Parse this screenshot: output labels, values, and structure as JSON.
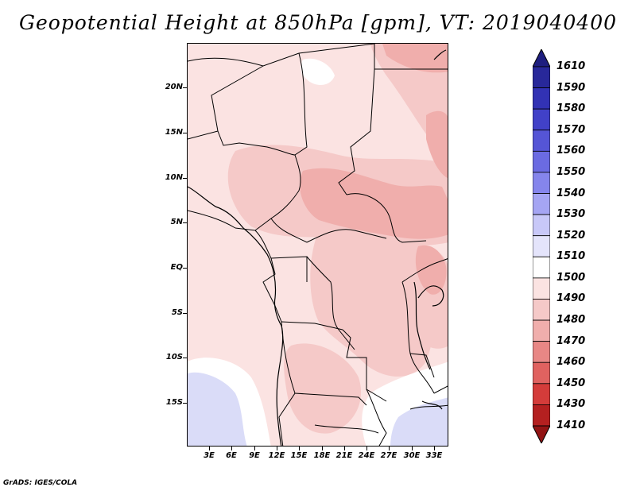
{
  "title": "Geopotential Height at 850hPa [gpm], VT: 2019040400",
  "footer": "GrADS: IGES/COLA",
  "map": {
    "lat_range": [
      -21.5,
      24.5
    ],
    "lon_range": [
      0,
      35
    ],
    "lat_labels": [
      "20N",
      "15N",
      "10N",
      "5N",
      "EQ",
      "5S",
      "10S",
      "15S"
    ],
    "lon_labels": [
      "3E",
      "6E",
      "9E",
      "12E",
      "15E",
      "18E",
      "21E",
      "24E",
      "27E",
      "30E",
      "33E"
    ],
    "fill_colors": {
      "1500": "#fbe3e2",
      "1490": "#f5c9c8",
      "1480": "#f0aeac",
      "1510": "#ffffff",
      "1520": "#dadcf8"
    }
  },
  "colorbar": {
    "labels": [
      "1610",
      "1590",
      "1580",
      "1570",
      "1560",
      "1550",
      "1540",
      "1530",
      "1520",
      "1510",
      "1500",
      "1490",
      "1480",
      "1470",
      "1460",
      "1450",
      "1430",
      "1410"
    ],
    "colors": [
      "#1e1e7f",
      "#28289a",
      "#3232b4",
      "#4141c8",
      "#5555d6",
      "#6b6be2",
      "#8585ec",
      "#a5a5f3",
      "#c8c8f8",
      "#e4e4fb",
      "#ffffff",
      "#fbe3e2",
      "#f5c9c8",
      "#f0aeac",
      "#e88785",
      "#e06260",
      "#d43c3a",
      "#b42020",
      "#921414"
    ]
  }
}
